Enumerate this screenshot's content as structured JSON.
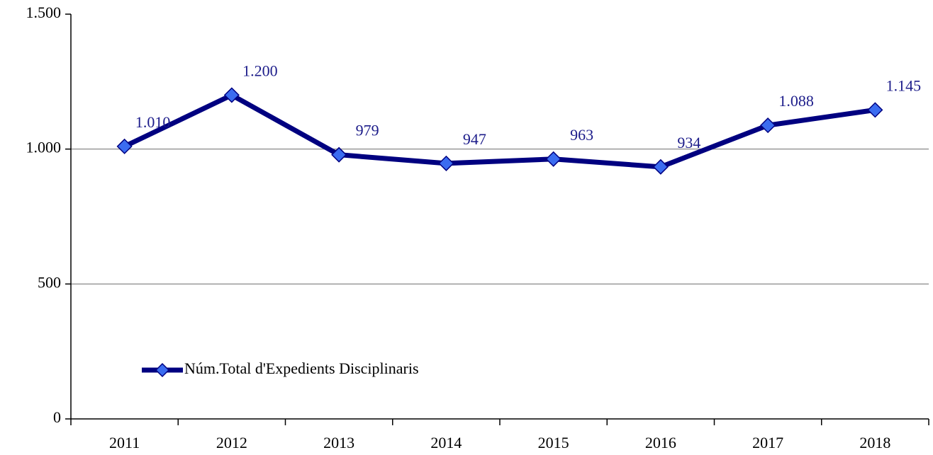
{
  "chart_data": {
    "type": "line",
    "categories": [
      "2011",
      "2012",
      "2013",
      "2014",
      "2015",
      "2016",
      "2017",
      "2018"
    ],
    "series": [
      {
        "name": "Núm.Total d'Expedients Disciplinaris",
        "color": "#000080",
        "marker_color": "#3b6cf0",
        "values": [
          1010,
          1200,
          979,
          947,
          963,
          934,
          1088,
          1145
        ],
        "value_labels": [
          "1.010",
          "1.200",
          "979",
          "947",
          "963",
          "934",
          "1.088",
          "1.145"
        ]
      }
    ],
    "ylim": [
      0,
      1500
    ],
    "yticks": [
      0,
      500,
      {
        "value": 1000,
        "label": "1.000"
      },
      {
        "value": 1500,
        "label": "1.500"
      }
    ],
    "grid": true,
    "legend": "lower left"
  }
}
